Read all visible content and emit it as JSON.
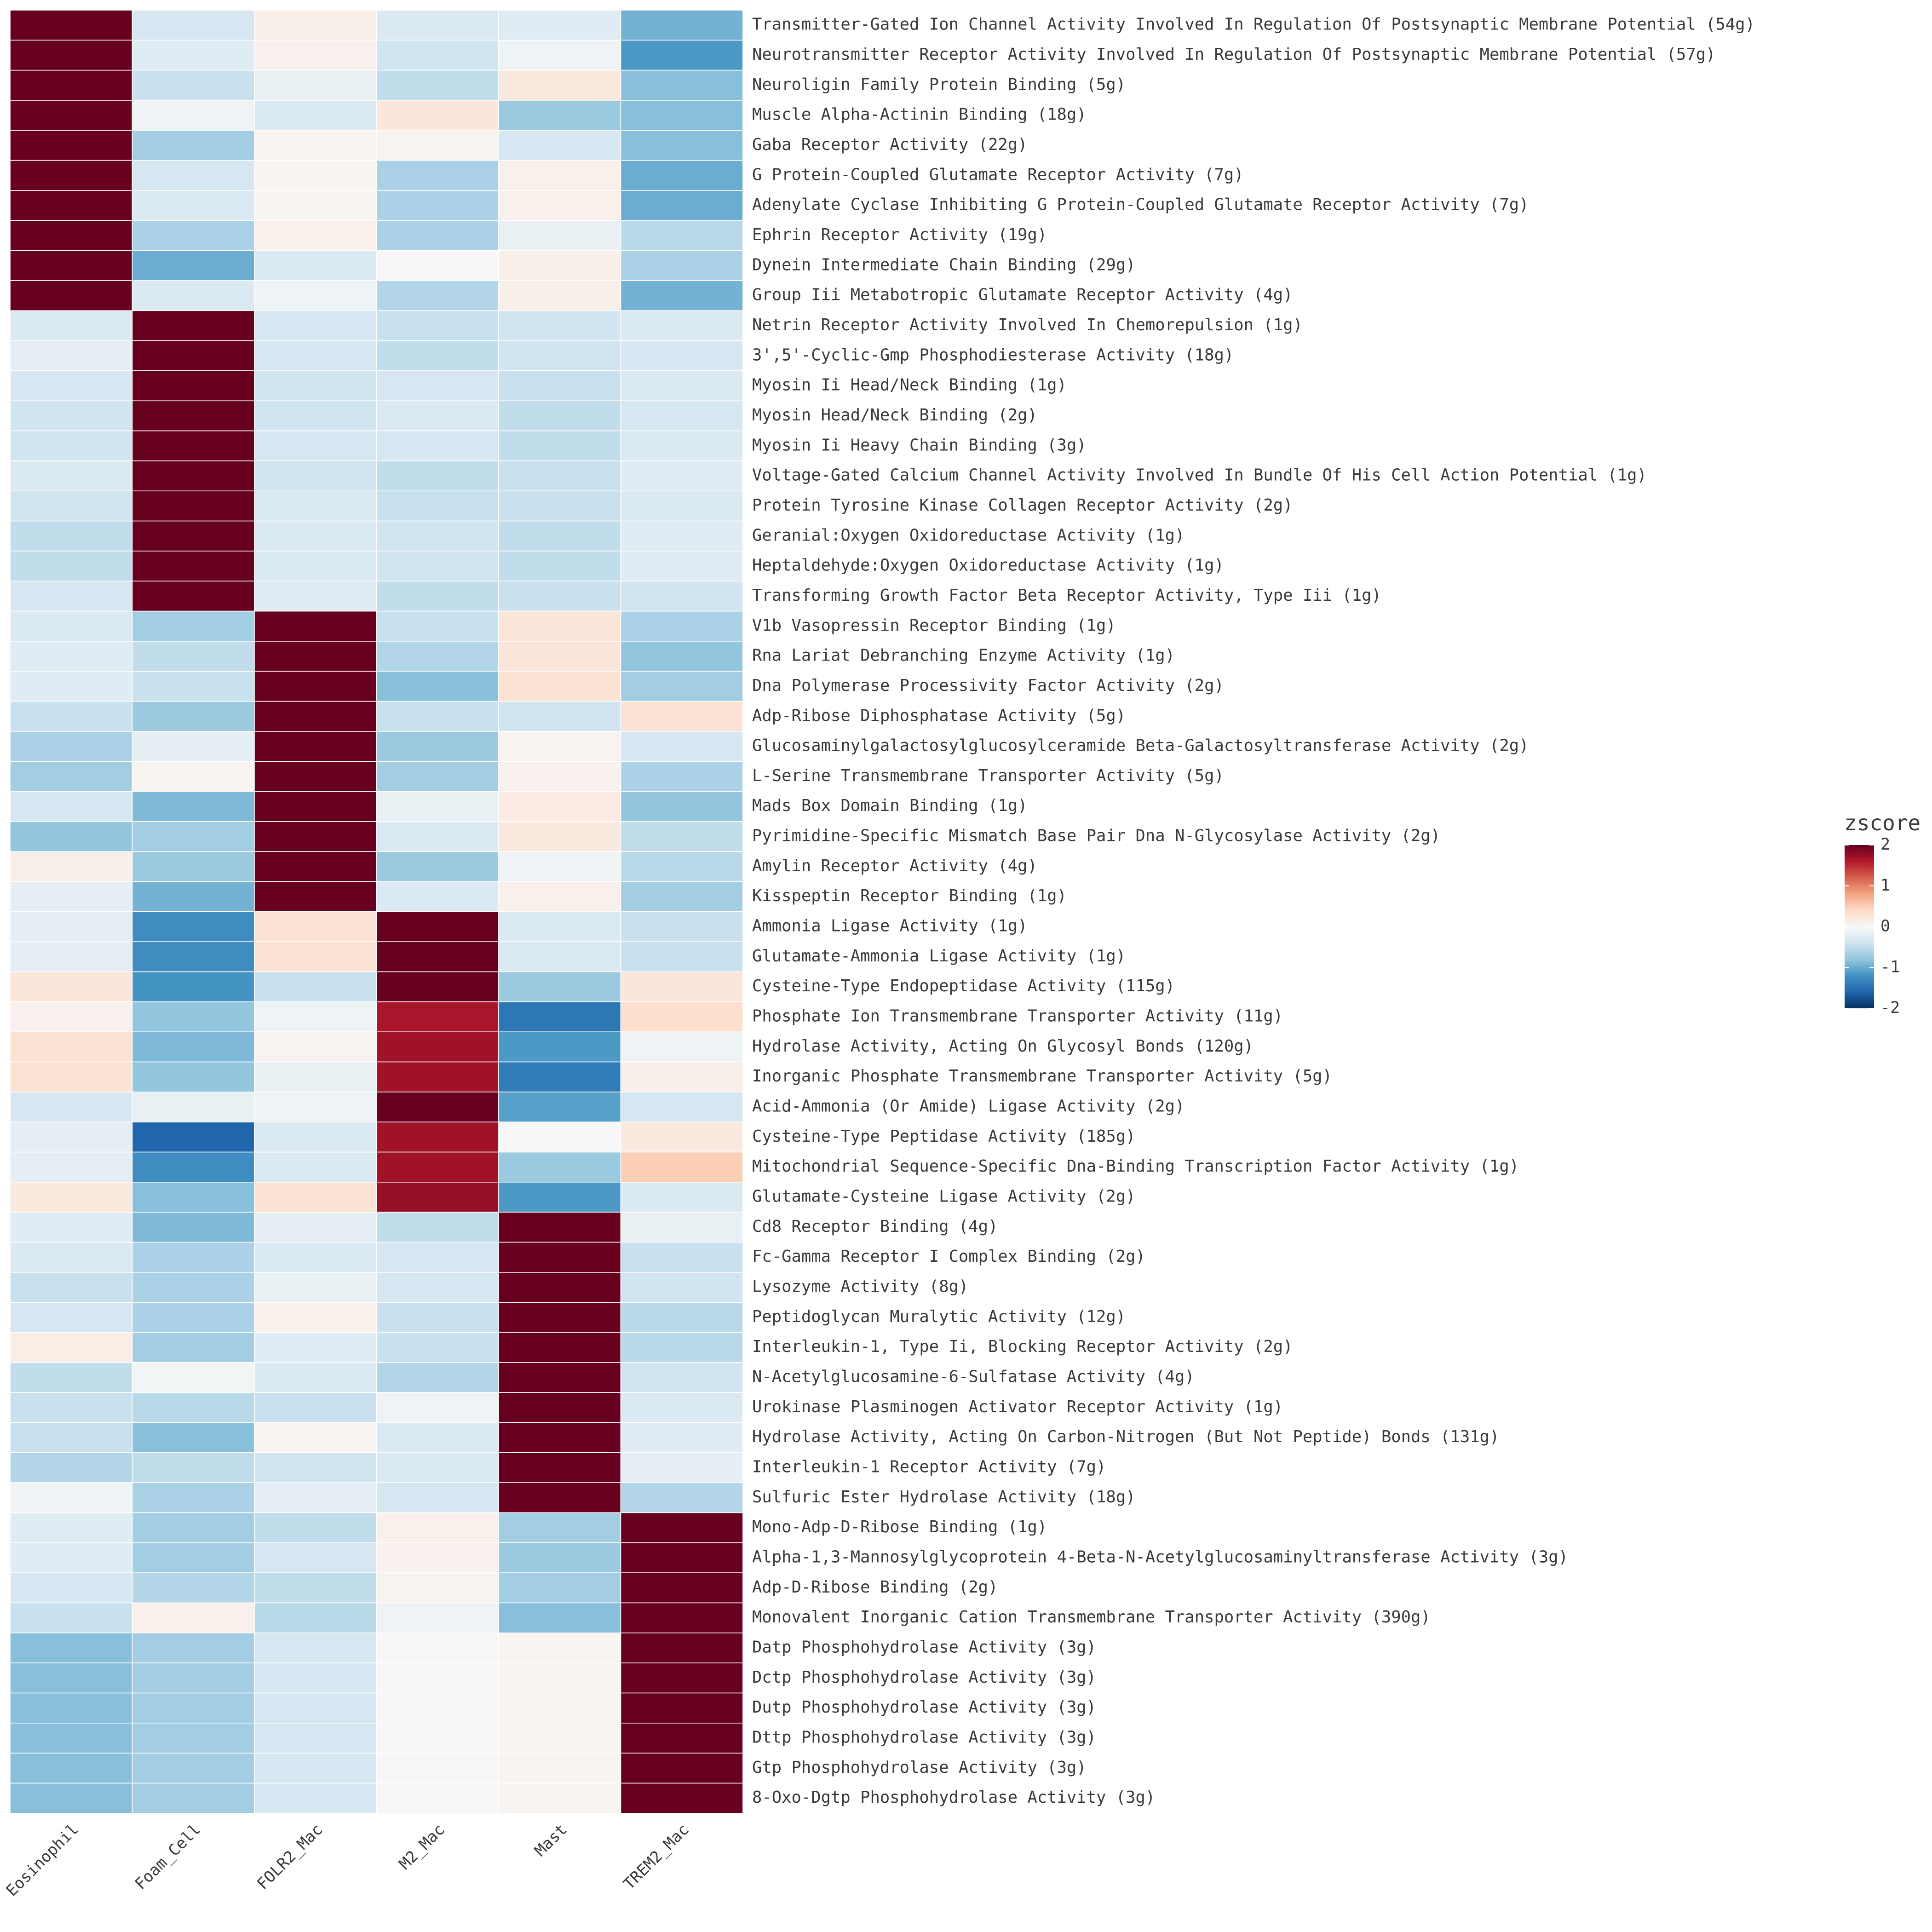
{
  "chart_data": {
    "type": "heatmap",
    "title": "",
    "xlabel": "",
    "ylabel": "",
    "columns": [
      "Eosinophil",
      "Foam_Cell",
      "FOLR2_Mac",
      "M2_Mac",
      "Mast",
      "TREM2_Mac"
    ],
    "rows": [
      "Transmitter-Gated Ion Channel Activity Involved In Regulation Of Postsynaptic Membrane Potential (54g)",
      "Neurotransmitter Receptor Activity Involved In Regulation Of Postsynaptic Membrane Potential (57g)",
      "Neuroligin Family Protein Binding (5g)",
      "Muscle Alpha-Actinin Binding (18g)",
      "Gaba Receptor Activity (22g)",
      "G Protein-Coupled Glutamate Receptor Activity (7g)",
      "Adenylate Cyclase Inhibiting G Protein-Coupled Glutamate Receptor Activity (7g)",
      "Ephrin Receptor Activity (19g)",
      "Dynein Intermediate Chain Binding (29g)",
      "Group Iii Metabotropic Glutamate Receptor Activity (4g)",
      "Netrin Receptor Activity Involved In Chemorepulsion (1g)",
      "3',5'-Cyclic-Gmp Phosphodiesterase Activity (18g)",
      "Myosin Ii Head/Neck Binding (1g)",
      "Myosin Head/Neck Binding (2g)",
      "Myosin Ii Heavy Chain Binding (3g)",
      "Voltage-Gated Calcium Channel Activity Involved In Bundle Of His Cell Action Potential (1g)",
      "Protein Tyrosine Kinase Collagen Receptor Activity (2g)",
      "Geranial:Oxygen Oxidoreductase Activity (1g)",
      "Heptaldehyde:Oxygen Oxidoreductase Activity (1g)",
      "Transforming Growth Factor Beta Receptor Activity, Type Iii (1g)",
      "V1b Vasopressin Receptor Binding (1g)",
      "Rna Lariat Debranching Enzyme Activity (1g)",
      "Dna Polymerase Processivity Factor Activity (2g)",
      "Adp-Ribose Diphosphatase Activity (5g)",
      "Glucosaminylgalactosylglucosylceramide Beta-Galactosyltransferase Activity (2g)",
      "L-Serine Transmembrane Transporter Activity (5g)",
      "Mads Box Domain Binding (1g)",
      "Pyrimidine-Specific Mismatch Base Pair Dna N-Glycosylase Activity (2g)",
      "Amylin Receptor Activity (4g)",
      "Kisspeptin Receptor Binding (1g)",
      "Ammonia Ligase Activity (1g)",
      "Glutamate-Ammonia Ligase Activity (1g)",
      "Cysteine-Type Endopeptidase Activity (115g)",
      "Phosphate Ion Transmembrane Transporter Activity (11g)",
      "Hydrolase Activity, Acting On Glycosyl Bonds (120g)",
      "Inorganic Phosphate Transmembrane Transporter Activity (5g)",
      "Acid-Ammonia (Or Amide) Ligase Activity (2g)",
      "Cysteine-Type Peptidase Activity (185g)",
      "Mitochondrial Sequence-Specific Dna-Binding Transcription Factor Activity (1g)",
      "Glutamate-Cysteine Ligase Activity (2g)",
      "Cd8 Receptor Binding (4g)",
      "Fc-Gamma Receptor I Complex Binding (2g)",
      "Lysozyme Activity (8g)",
      "Peptidoglycan Muralytic Activity (12g)",
      "Interleukin-1, Type Ii, Blocking Receptor Activity (2g)",
      "N-Acetylglucosamine-6-Sulfatase Activity (4g)",
      "Urokinase Plasminogen Activator Receptor Activity (1g)",
      "Hydrolase Activity, Acting On Carbon-Nitrogen (But Not Peptide) Bonds (131g)",
      "Interleukin-1 Receptor Activity (7g)",
      "Sulfuric Ester Hydrolase Activity (18g)",
      "Mono-Adp-D-Ribose Binding (1g)",
      "Alpha-1,3-Mannosylglycoprotein 4-Beta-N-Acetylglucosaminyltransferase Activity (3g)",
      "Adp-D-Ribose Binding (2g)",
      "Monovalent Inorganic Cation Transmembrane Transporter Activity (390g)",
      "Datp Phosphohydrolase Activity (3g)",
      "Dctp Phosphohydrolase Activity (3g)",
      "Dutp Phosphohydrolase Activity (3g)",
      "Dttp Phosphohydrolase Activity (3g)",
      "Gtp Phosphohydrolase Activity (3g)",
      "8-Oxo-Dgtp Phosphohydrolase Activity (3g)"
    ],
    "values": [
      [
        2.04,
        -0.35,
        0.12,
        -0.3,
        -0.25,
        -0.95
      ],
      [
        2.04,
        -0.25,
        0.08,
        -0.4,
        -0.1,
        -1.15
      ],
      [
        2.04,
        -0.45,
        -0.15,
        -0.5,
        0.22,
        -0.85
      ],
      [
        2.04,
        -0.1,
        -0.3,
        0.25,
        -0.75,
        -0.85
      ],
      [
        2.04,
        -0.7,
        0.05,
        0.06,
        -0.35,
        -0.85
      ],
      [
        2.04,
        -0.35,
        0.05,
        -0.65,
        0.1,
        -1.0
      ],
      [
        2.04,
        -0.3,
        0.05,
        -0.65,
        0.1,
        -1.0
      ],
      [
        2.04,
        -0.65,
        0.1,
        -0.65,
        -0.15,
        -0.55
      ],
      [
        2.04,
        -1.0,
        -0.3,
        0.0,
        0.12,
        -0.65
      ],
      [
        2.04,
        -0.3,
        -0.1,
        -0.6,
        0.12,
        -0.95
      ],
      [
        -0.3,
        2.3,
        -0.35,
        -0.45,
        -0.4,
        -0.3
      ],
      [
        -0.2,
        2.3,
        -0.35,
        -0.5,
        -0.4,
        -0.35
      ],
      [
        -0.35,
        2.3,
        -0.4,
        -0.35,
        -0.45,
        -0.3
      ],
      [
        -0.4,
        2.3,
        -0.4,
        -0.3,
        -0.5,
        -0.35
      ],
      [
        -0.4,
        2.3,
        -0.35,
        -0.35,
        -0.5,
        -0.3
      ],
      [
        -0.3,
        2.3,
        -0.4,
        -0.5,
        -0.45,
        -0.25
      ],
      [
        -0.4,
        2.3,
        -0.3,
        -0.45,
        -0.45,
        -0.3
      ],
      [
        -0.5,
        2.3,
        -0.3,
        -0.4,
        -0.5,
        -0.25
      ],
      [
        -0.5,
        2.3,
        -0.3,
        -0.4,
        -0.5,
        -0.25
      ],
      [
        -0.35,
        2.3,
        -0.25,
        -0.5,
        -0.45,
        -0.4
      ],
      [
        -0.3,
        -0.7,
        2.1,
        -0.45,
        0.25,
        -0.65
      ],
      [
        -0.25,
        -0.5,
        2.1,
        -0.6,
        0.25,
        -0.8
      ],
      [
        -0.25,
        -0.45,
        2.1,
        -0.85,
        0.3,
        -0.7
      ],
      [
        -0.45,
        -0.75,
        2.1,
        -0.45,
        -0.4,
        0.3
      ],
      [
        -0.65,
        -0.2,
        2.1,
        -0.75,
        0.06,
        -0.35
      ],
      [
        -0.7,
        0.05,
        2.1,
        -0.7,
        0.08,
        -0.65
      ],
      [
        -0.35,
        -0.9,
        2.1,
        -0.15,
        0.18,
        -0.8
      ],
      [
        -0.8,
        -0.7,
        2.1,
        -0.3,
        0.2,
        -0.5
      ],
      [
        0.12,
        -0.75,
        2.1,
        -0.75,
        -0.08,
        -0.55
      ],
      [
        -0.2,
        -0.95,
        2.1,
        -0.3,
        0.1,
        -0.7
      ],
      [
        -0.2,
        -1.25,
        0.3,
        2.1,
        -0.3,
        -0.45
      ],
      [
        -0.2,
        -1.25,
        0.3,
        2.1,
        -0.3,
        -0.45
      ],
      [
        0.25,
        -1.2,
        -0.45,
        2.1,
        -0.75,
        0.25
      ],
      [
        0.08,
        -0.8,
        -0.1,
        1.65,
        -1.45,
        0.35
      ],
      [
        0.3,
        -0.9,
        0.06,
        1.7,
        -1.15,
        -0.1
      ],
      [
        0.3,
        -0.8,
        -0.15,
        1.7,
        -1.4,
        0.12
      ],
      [
        -0.35,
        -0.15,
        -0.08,
        2.1,
        -1.1,
        -0.35
      ],
      [
        -0.2,
        -1.6,
        -0.3,
        1.7,
        0.0,
        0.2
      ],
      [
        -0.2,
        -1.25,
        -0.3,
        1.7,
        -0.75,
        0.5
      ],
      [
        0.2,
        -0.85,
        0.3,
        1.75,
        -1.15,
        -0.3
      ],
      [
        -0.25,
        -0.9,
        -0.2,
        -0.5,
        2.3,
        -0.15
      ],
      [
        -0.3,
        -0.65,
        -0.3,
        -0.35,
        2.3,
        -0.45
      ],
      [
        -0.45,
        -0.65,
        -0.15,
        -0.35,
        2.3,
        -0.4
      ],
      [
        -0.35,
        -0.65,
        0.1,
        -0.45,
        2.3,
        -0.55
      ],
      [
        0.15,
        -0.7,
        -0.25,
        -0.45,
        2.3,
        -0.55
      ],
      [
        -0.5,
        -0.05,
        -0.3,
        -0.6,
        2.3,
        -0.4
      ],
      [
        -0.45,
        -0.55,
        -0.45,
        -0.08,
        2.3,
        -0.3
      ],
      [
        -0.45,
        -0.85,
        0.06,
        -0.3,
        2.3,
        -0.25
      ],
      [
        -0.6,
        -0.5,
        -0.4,
        -0.3,
        2.3,
        -0.2
      ],
      [
        -0.1,
        -0.65,
        -0.2,
        -0.35,
        2.3,
        -0.6
      ],
      [
        -0.25,
        -0.7,
        -0.5,
        0.1,
        -0.7,
        2.2
      ],
      [
        -0.25,
        -0.7,
        -0.35,
        0.08,
        -0.75,
        2.2
      ],
      [
        -0.35,
        -0.6,
        -0.5,
        0.06,
        -0.7,
        2.2
      ],
      [
        -0.45,
        0.1,
        -0.55,
        -0.1,
        -0.85,
        2.2
      ],
      [
        -0.85,
        -0.7,
        -0.35,
        0.0,
        0.05,
        2.2
      ],
      [
        -0.85,
        -0.7,
        -0.35,
        0.0,
        0.05,
        2.2
      ],
      [
        -0.85,
        -0.7,
        -0.35,
        0.0,
        0.05,
        2.2
      ],
      [
        -0.85,
        -0.7,
        -0.35,
        0.0,
        0.05,
        2.2
      ],
      [
        -0.85,
        -0.7,
        -0.35,
        0.0,
        0.05,
        2.2
      ],
      [
        -0.85,
        -0.7,
        -0.35,
        0.0,
        0.05,
        2.2
      ]
    ],
    "color_scale": {
      "name": "RdBu",
      "domain": [
        -2,
        2
      ],
      "colors": [
        "#053061",
        "#2166ac",
        "#4393c3",
        "#92c5de",
        "#d1e5f0",
        "#f7f7f7",
        "#fddbc7",
        "#f4a582",
        "#d6604d",
        "#b2182b",
        "#67001f"
      ]
    },
    "legend": {
      "title": "zscore",
      "ticks": [
        2,
        1,
        0,
        -1,
        -2
      ],
      "tick_labels": [
        "2",
        "1",
        "0",
        "-1",
        "-2"
      ],
      "position": "right"
    },
    "grid": false
  }
}
